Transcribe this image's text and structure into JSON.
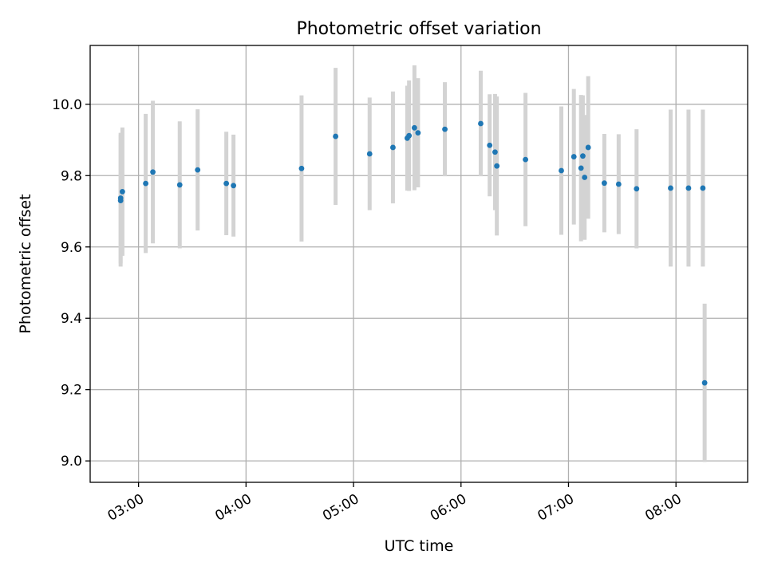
{
  "chart_data": {
    "type": "scatter",
    "title": "Photometric offset variation",
    "xlabel": "UTC time",
    "ylabel": "Photometric offset",
    "x_ticks": [
      "03:00",
      "04:00",
      "05:00",
      "06:00",
      "07:00",
      "08:00"
    ],
    "y_ticks": [
      "9.0",
      "9.2",
      "9.4",
      "9.6",
      "9.8",
      "10.0"
    ],
    "xlim": [
      "02:33",
      "08:40"
    ],
    "ylim": [
      8.94,
      10.165
    ],
    "grid": true,
    "marker_color": "#1f77b4",
    "errorbar_color": "#d3d3d3",
    "series": [
      {
        "points": [
          {
            "time": "02:50",
            "y": 9.73,
            "err": 0.185
          },
          {
            "time": "02:50",
            "y": 9.737,
            "err": 0.183
          },
          {
            "time": "02:51",
            "y": 9.755,
            "err": 0.18
          },
          {
            "time": "03:04",
            "y": 9.778,
            "err": 0.195
          },
          {
            "time": "03:08",
            "y": 9.81,
            "err": 0.2
          },
          {
            "time": "03:23",
            "y": 9.774,
            "err": 0.178
          },
          {
            "time": "03:33",
            "y": 9.816,
            "err": 0.17
          },
          {
            "time": "03:49",
            "y": 9.778,
            "err": 0.145
          },
          {
            "time": "03:53",
            "y": 9.772,
            "err": 0.143
          },
          {
            "time": "04:31",
            "y": 9.82,
            "err": 0.205
          },
          {
            "time": "04:50",
            "y": 9.91,
            "err": 0.192
          },
          {
            "time": "05:09",
            "y": 9.861,
            "err": 0.158
          },
          {
            "time": "05:22",
            "y": 9.879,
            "err": 0.157
          },
          {
            "time": "05:30",
            "y": 9.905,
            "err": 0.147
          },
          {
            "time": "05:31",
            "y": 9.912,
            "err": 0.155
          },
          {
            "time": "05:34",
            "y": 9.934,
            "err": 0.175
          },
          {
            "time": "05:36",
            "y": 9.92,
            "err": 0.153
          },
          {
            "time": "05:51",
            "y": 9.93,
            "err": 0.132
          },
          {
            "time": "06:11",
            "y": 9.946,
            "err": 0.148
          },
          {
            "time": "06:16",
            "y": 9.885,
            "err": 0.143
          },
          {
            "time": "06:19",
            "y": 9.866,
            "err": 0.163
          },
          {
            "time": "06:20",
            "y": 9.827,
            "err": 0.195
          },
          {
            "time": "06:36",
            "y": 9.845,
            "err": 0.187
          },
          {
            "time": "06:56",
            "y": 9.814,
            "err": 0.18
          },
          {
            "time": "07:03",
            "y": 9.853,
            "err": 0.19
          },
          {
            "time": "07:07",
            "y": 9.821,
            "err": 0.205
          },
          {
            "time": "07:08",
            "y": 9.855,
            "err": 0.17
          },
          {
            "time": "07:09",
            "y": 9.795,
            "err": 0.175
          },
          {
            "time": "07:11",
            "y": 9.879,
            "err": 0.2
          },
          {
            "time": "07:20",
            "y": 9.779,
            "err": 0.138
          },
          {
            "time": "07:28",
            "y": 9.776,
            "err": 0.14
          },
          {
            "time": "07:38",
            "y": 9.763,
            "err": 0.167
          },
          {
            "time": "07:57",
            "y": 9.765,
            "err": 0.22
          },
          {
            "time": "08:07",
            "y": 9.765,
            "err": 0.22
          },
          {
            "time": "08:15",
            "y": 9.765,
            "err": 0.22
          },
          {
            "time": "08:16",
            "y": 9.219,
            "err": 0.222
          }
        ]
      }
    ]
  }
}
